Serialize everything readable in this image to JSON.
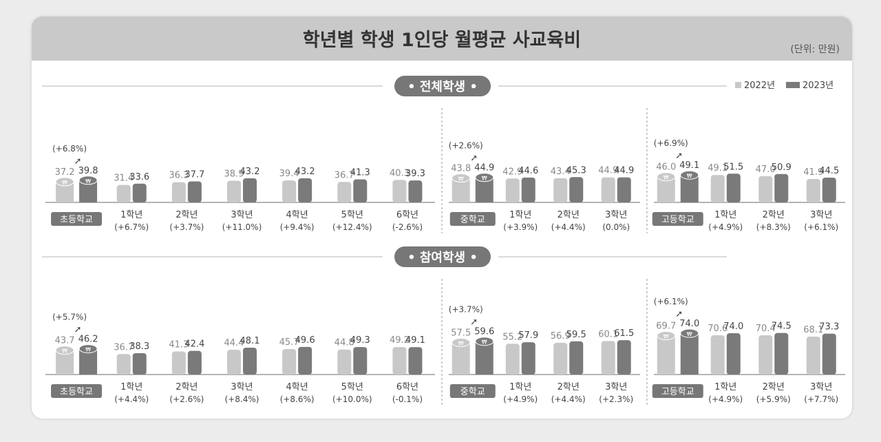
{
  "title": "학년별 학생 1인당 월평균 사교육비",
  "unit": "(단위: 만원)",
  "legend": {
    "y2022": "2022년",
    "y2023": "2023년"
  },
  "colors": {
    "bar2022": "#c8c8c8",
    "bar2023": "#7a7a7a",
    "pill": "#777777"
  },
  "chart_data": [
    {
      "type": "bar",
      "title": "전체학생",
      "series_names": [
        "2022년",
        "2023년"
      ],
      "groups": [
        {
          "school": "초등학교",
          "total": {
            "v2022": 37.2,
            "v2023": 39.8,
            "change": "(+6.8%)"
          },
          "grades": [
            {
              "label": "1학년",
              "v2022": 31.4,
              "v2023": 33.6,
              "change": "(+6.7%)"
            },
            {
              "label": "2학년",
              "v2022": 36.3,
              "v2023": 37.7,
              "change": "(+3.7%)"
            },
            {
              "label": "3학년",
              "v2022": 38.9,
              "v2023": 43.2,
              "change": "(+11.0%)"
            },
            {
              "label": "4학년",
              "v2022": 39.4,
              "v2023": 43.2,
              "change": "(+9.4%)"
            },
            {
              "label": "5학년",
              "v2022": 36.7,
              "v2023": 41.3,
              "change": "(+12.4%)"
            },
            {
              "label": "6학년",
              "v2022": 40.3,
              "v2023": 39.3,
              "change": "(-2.6%)"
            }
          ]
        },
        {
          "school": "중학교",
          "total": {
            "v2022": 43.8,
            "v2023": 44.9,
            "change": "(+2.6%)"
          },
          "grades": [
            {
              "label": "1학년",
              "v2022": 42.9,
              "v2023": 44.6,
              "change": "(+3.9%)"
            },
            {
              "label": "2학년",
              "v2022": 43.4,
              "v2023": 45.3,
              "change": "(+4.4%)"
            },
            {
              "label": "3학년",
              "v2022": 44.9,
              "v2023": 44.9,
              "change": "(0.0%)"
            }
          ]
        },
        {
          "school": "고등학교",
          "total": {
            "v2022": 46.0,
            "v2023": 49.1,
            "change": "(+6.9%)"
          },
          "grades": [
            {
              "label": "1학년",
              "v2022": 49.1,
              "v2023": 51.5,
              "change": "(+4.9%)"
            },
            {
              "label": "2학년",
              "v2022": 47.0,
              "v2023": 50.9,
              "change": "(+8.3%)"
            },
            {
              "label": "3학년",
              "v2022": 41.9,
              "v2023": 44.5,
              "change": "(+6.1%)"
            }
          ]
        }
      ]
    },
    {
      "type": "bar",
      "title": "참여학생",
      "series_names": [
        "2022년",
        "2023년"
      ],
      "groups": [
        {
          "school": "초등학교",
          "total": {
            "v2022": 43.7,
            "v2023": 46.2,
            "change": "(+5.7%)"
          },
          "grades": [
            {
              "label": "1학년",
              "v2022": 36.7,
              "v2023": 38.3,
              "change": "(+4.4%)"
            },
            {
              "label": "2학년",
              "v2022": 41.3,
              "v2023": 42.4,
              "change": "(+2.6%)"
            },
            {
              "label": "3학년",
              "v2022": 44.4,
              "v2023": 48.1,
              "change": "(+8.4%)"
            },
            {
              "label": "4학년",
              "v2022": 45.7,
              "v2023": 49.6,
              "change": "(+8.6%)"
            },
            {
              "label": "5학년",
              "v2022": 44.8,
              "v2023": 49.3,
              "change": "(+10.0%)"
            },
            {
              "label": "6학년",
              "v2022": 49.2,
              "v2023": 49.1,
              "change": "(-0.1%)"
            }
          ]
        },
        {
          "school": "중학교",
          "total": {
            "v2022": 57.5,
            "v2023": 59.6,
            "change": "(+3.7%)"
          },
          "grades": [
            {
              "label": "1학년",
              "v2022": 55.2,
              "v2023": 57.9,
              "change": "(+4.9%)"
            },
            {
              "label": "2학년",
              "v2022": 56.9,
              "v2023": 59.5,
              "change": "(+4.4%)"
            },
            {
              "label": "3학년",
              "v2022": 60.1,
              "v2023": 61.5,
              "change": "(+2.3%)"
            }
          ]
        },
        {
          "school": "고등학교",
          "total": {
            "v2022": 69.7,
            "v2023": 74.0,
            "change": "(+6.1%)"
          },
          "grades": [
            {
              "label": "1학년",
              "v2022": 70.6,
              "v2023": 74.0,
              "change": "(+4.9%)"
            },
            {
              "label": "2학년",
              "v2022": 70.4,
              "v2023": 74.5,
              "change": "(+5.9%)"
            },
            {
              "label": "3학년",
              "v2022": 68.1,
              "v2023": 73.3,
              "change": "(+7.7%)"
            }
          ]
        }
      ]
    }
  ]
}
